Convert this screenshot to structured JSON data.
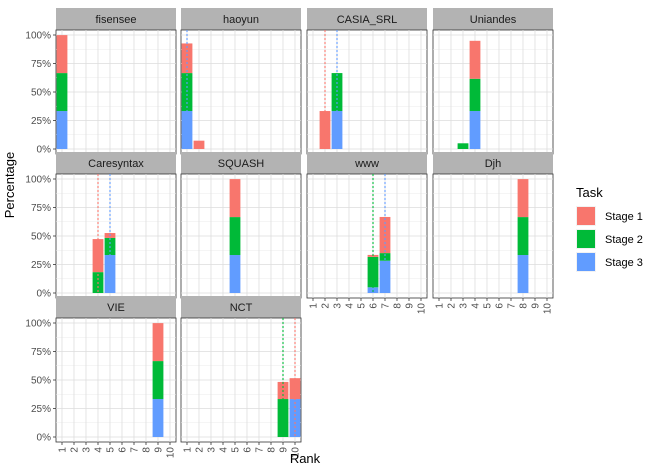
{
  "chart_data": {
    "type": "bar",
    "stacked": true,
    "faceted": true,
    "xlabel": "Rank",
    "ylabel": "Percentage",
    "x_ticks": [
      "1",
      "2",
      "3",
      "4",
      "5",
      "6",
      "7",
      "8",
      "9",
      "10"
    ],
    "y_ticks": [
      "0%",
      "25%",
      "50%",
      "75%",
      "100%"
    ],
    "ylim": [
      0,
      1
    ],
    "legend": {
      "title": "Task",
      "placement": "right",
      "items": [
        {
          "name": "Stage 1",
          "color": "#F8766D"
        },
        {
          "name": "Stage 2",
          "color": "#00BA38"
        },
        {
          "name": "Stage 3",
          "color": "#619CFF"
        }
      ]
    },
    "panels": [
      {
        "name": "fisensee",
        "bars": [
          {
            "rank": 1,
            "stage3": 0.333,
            "stage2": 0.333,
            "stage1": 0.333
          }
        ],
        "mean_lines": []
      },
      {
        "name": "haoyun",
        "bars": [
          {
            "rank": 1,
            "stage3": 0.333,
            "stage2": 0.333,
            "stage1": 0.26
          },
          {
            "rank": 2,
            "stage3": 0,
            "stage2": 0,
            "stage1": 0.073
          }
        ],
        "mean_lines": [
          {
            "stage": "Stage 3",
            "rank": 1
          }
        ]
      },
      {
        "name": "CASIA_SRL",
        "bars": [
          {
            "rank": 2,
            "stage3": 0,
            "stage2": 0,
            "stage1": 0.333
          },
          {
            "rank": 3,
            "stage3": 0.333,
            "stage2": 0.333,
            "stage1": 0
          }
        ],
        "mean_lines": [
          {
            "stage": "Stage 1",
            "rank": 2
          },
          {
            "stage": "Stage 3",
            "rank": 3
          }
        ]
      },
      {
        "name": "Uniandes",
        "bars": [
          {
            "rank": 3,
            "stage3": 0,
            "stage2": 0.05,
            "stage1": 0
          },
          {
            "rank": 4,
            "stage3": 0.333,
            "stage2": 0.283,
            "stage1": 0.333
          }
        ],
        "mean_lines": []
      },
      {
        "name": "Caresyntax",
        "bars": [
          {
            "rank": 4,
            "stage3": 0,
            "stage2": 0.183,
            "stage1": 0.29
          },
          {
            "rank": 5,
            "stage3": 0.333,
            "stage2": 0.15,
            "stage1": 0.043
          }
        ],
        "mean_lines": [
          {
            "stage": "Stage 1",
            "rank": 4
          },
          {
            "stage": "Stage 3",
            "rank": 5
          }
        ]
      },
      {
        "name": "SQUASH",
        "bars": [
          {
            "rank": 5,
            "stage3": 0.333,
            "stage2": 0.333,
            "stage1": 0.333
          }
        ],
        "mean_lines": []
      },
      {
        "name": "www",
        "bars": [
          {
            "rank": 6,
            "stage3": 0.05,
            "stage2": 0.267,
            "stage1": 0.017
          },
          {
            "rank": 7,
            "stage3": 0.283,
            "stage2": 0.067,
            "stage1": 0.317
          }
        ],
        "mean_lines": [
          {
            "stage": "Stage 2",
            "rank": 6
          },
          {
            "stage": "Stage 3",
            "rank": 7
          }
        ]
      },
      {
        "name": "Djh",
        "bars": [
          {
            "rank": 8,
            "stage3": 0.333,
            "stage2": 0.333,
            "stage1": 0.333
          }
        ],
        "mean_lines": []
      },
      {
        "name": "VIE",
        "bars": [
          {
            "rank": 9,
            "stage3": 0.333,
            "stage2": 0.333,
            "stage1": 0.333
          }
        ],
        "mean_lines": []
      },
      {
        "name": "NCT",
        "bars": [
          {
            "rank": 9,
            "stage3": 0,
            "stage2": 0.333,
            "stage1": 0.15
          },
          {
            "rank": 10,
            "stage3": 0.333,
            "stage2": 0,
            "stage1": 0.183
          }
        ],
        "mean_lines": [
          {
            "stage": "Stage 2",
            "rank": 9
          },
          {
            "stage": "Stage 1",
            "rank": 10
          }
        ]
      }
    ]
  }
}
